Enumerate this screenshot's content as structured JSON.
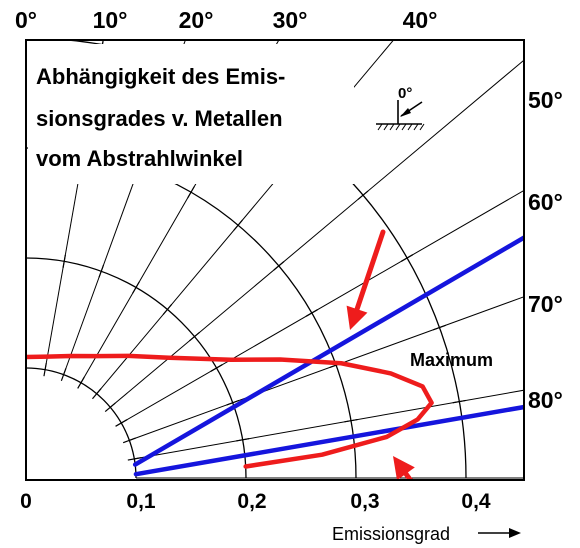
{
  "chart_data": {
    "type": "polar",
    "title_lines": [
      "Abhängigkeit des Emis-",
      "sionsgrades v. Metallen",
      "vom Abstrahlwinkel"
    ],
    "xlabel": "Emissionsgrad",
    "xlim": [
      0,
      0.45
    ],
    "x_ticks": [
      "0",
      "0,1",
      "0,2",
      "0,3",
      "0,4"
    ],
    "angle_ticks_top": [
      "0°",
      "10°",
      "20°",
      "30°",
      "40°"
    ],
    "angle_ticks_right": [
      "50°",
      "60°",
      "70°",
      "80°"
    ],
    "arc_radii": [
      0.1,
      0.2,
      0.3,
      0.4
    ],
    "grid": true,
    "series": [
      {
        "color": "#ee1c1c",
        "points": [
          {
            "angle_deg": 0,
            "r": 0.11
          },
          {
            "angle_deg": 10,
            "r": 0.112
          },
          {
            "angle_deg": 20,
            "r": 0.118
          },
          {
            "angle_deg": 30,
            "r": 0.128
          },
          {
            "angle_deg": 40,
            "r": 0.145
          },
          {
            "angle_deg": 50,
            "r": 0.17
          },
          {
            "angle_deg": 60,
            "r": 0.215
          },
          {
            "angle_deg": 65,
            "r": 0.255
          },
          {
            "angle_deg": 70,
            "r": 0.305
          },
          {
            "angle_deg": 74,
            "r": 0.345
          },
          {
            "angle_deg": 77,
            "r": 0.37
          },
          {
            "angle_deg": 79.5,
            "r": 0.375
          },
          {
            "angle_deg": 81.5,
            "r": 0.36
          },
          {
            "angle_deg": 83.5,
            "r": 0.33
          },
          {
            "angle_deg": 85.5,
            "r": 0.27
          },
          {
            "angle_deg": 87,
            "r": 0.2
          }
        ]
      }
    ],
    "reference_lines": [
      {
        "color": "#1515dd",
        "from": [
          0.1,
          83.0
        ],
        "to": [
          0.43,
          65.0
        ]
      },
      {
        "color": "#1515dd",
        "from": [
          0.1,
          88.0
        ],
        "to": [
          0.43,
          82.0
        ]
      }
    ],
    "annotations": [
      {
        "text": "Maximum"
      },
      {
        "text": "0°"
      }
    ],
    "arrow_color": "#ee1c1c"
  }
}
